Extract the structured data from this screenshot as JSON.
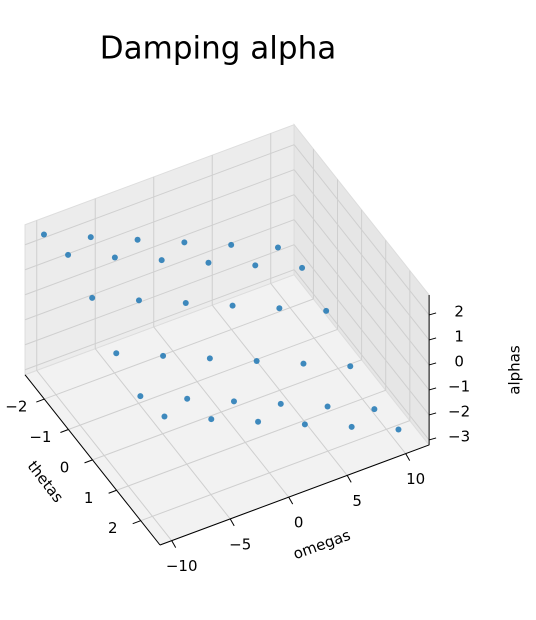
{
  "chart_data": {
    "type": "scatter3d",
    "title": "Damping alpha",
    "xlabel": "thetas",
    "ylabel": "omegas",
    "zlabel": "alphas",
    "xlim": [
      -2.8,
      2.8
    ],
    "ylim": [
      -11,
      12
    ],
    "zlim": [
      -3.2,
      2.8
    ],
    "xticks": [
      {
        "value": -2,
        "label": "−2"
      },
      {
        "value": -1,
        "label": "−1"
      },
      0,
      1,
      2
    ],
    "yticks": [
      {
        "value": -10,
        "label": "−10"
      },
      {
        "value": -5,
        "label": "−5"
      },
      0,
      5,
      10
    ],
    "zticks": [
      {
        "value": -3,
        "label": "−3"
      },
      {
        "value": -2,
        "label": "−2"
      },
      {
        "value": -1,
        "label": "−1"
      },
      0,
      1,
      2
    ],
    "grid": true,
    "color": "#1f77b4",
    "x": [
      -2.5,
      -2.5,
      -2.5,
      -2.5,
      -2.5,
      -2.5,
      -1.5,
      -1.5,
      -1.5,
      -1.5,
      -1.5,
      -1.5,
      -0.5,
      -0.5,
      -0.5,
      -0.5,
      -0.5,
      -0.5,
      0.5,
      0.5,
      0.5,
      0.5,
      0.5,
      0.5,
      1.5,
      1.5,
      1.5,
      1.5,
      1.5,
      1.5,
      2.5,
      2.5,
      2.5,
      2.5,
      2.5,
      2.5
    ],
    "y": [
      -10,
      -6,
      -2,
      2,
      6,
      10,
      -10,
      -6,
      -2,
      2,
      6,
      10,
      -10,
      -6,
      -2,
      2,
      6,
      10,
      -10,
      -6,
      -2,
      2,
      6,
      10,
      -10,
      -6,
      -2,
      2,
      6,
      10,
      -10,
      -6,
      -2,
      2,
      6,
      10
    ],
    "z": [
      2.6,
      1.8,
      1.0,
      0.2,
      -0.6,
      -1.4,
      3.0,
      2.2,
      1.4,
      0.6,
      -0.2,
      -1.0,
      2.5,
      1.7,
      0.9,
      0.1,
      -0.7,
      -1.5,
      1.5,
      0.7,
      -0.1,
      -0.9,
      -1.7,
      -2.5,
      1.0,
      0.2,
      -0.6,
      -1.4,
      -2.2,
      -3.0,
      1.4,
      0.6,
      -0.2,
      -1.0,
      -1.8,
      -2.6
    ]
  }
}
